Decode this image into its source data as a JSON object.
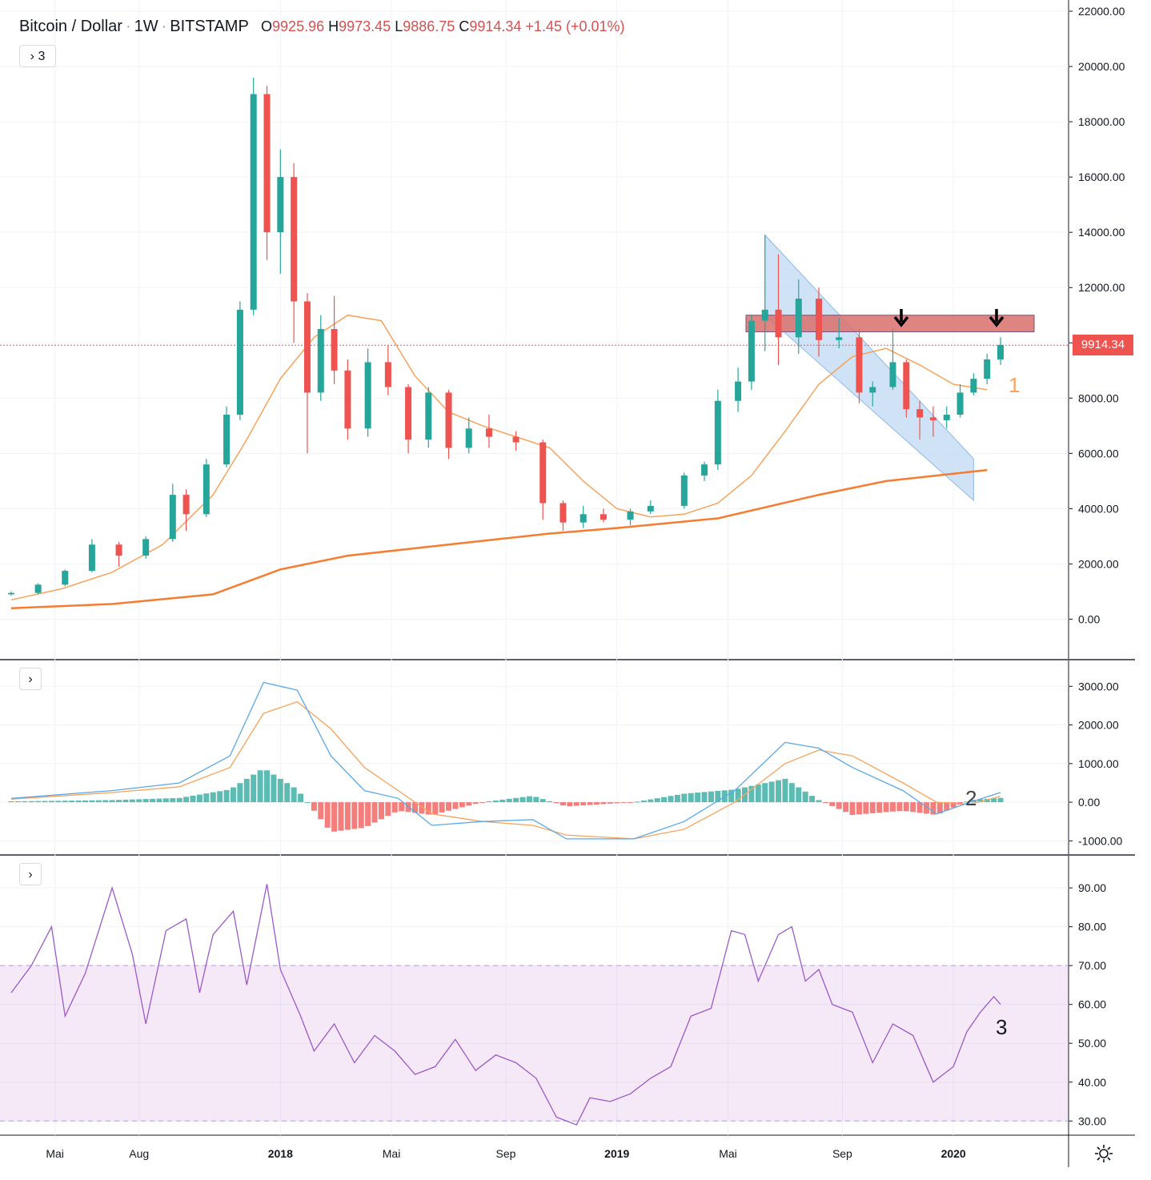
{
  "header": {
    "symbol": "Bitcoin / Dollar",
    "interval": "1W",
    "exchange": "BITSTAMP",
    "open_label": "O",
    "open": "9925.96",
    "high_label": "H",
    "high": "9973.45",
    "low_label": "L",
    "low": "9886.75",
    "close_label": "C",
    "close": "9914.34",
    "change": "+1.45 (+0.01%)"
  },
  "indicator_toggle_count": "3",
  "last_price_label": "9914.34",
  "colors": {
    "up": "#26a69a",
    "down": "#ef5350",
    "ma_short": "#f7a35c",
    "ma_long": "#f57c30",
    "macd": "#5aa9e6",
    "signal": "#f7a35c",
    "rsi": "#9b59c9",
    "channel": "#bcd7f2",
    "resistance": "#d9706b"
  },
  "annotations": {
    "ma_marker": "1",
    "macd_marker": "2",
    "rsi_marker": "3"
  },
  "chart_data": [
    {
      "type": "candlestick",
      "title": "Bitcoin / Dollar · 1W · BITSTAMP",
      "ylim": [
        -1000,
        22000
      ],
      "y_ticks": [
        "0.00",
        "2000.00",
        "4000.00",
        "6000.00",
        "8000.00",
        "10000.00",
        "12000.00",
        "14000.00",
        "16000.00",
        "18000.00",
        "20000.00",
        "22000.00"
      ],
      "x_ticks": [
        "Mai",
        "Aug",
        "2018",
        "Mai",
        "Sep",
        "2019",
        "Mai",
        "Sep",
        "2020"
      ],
      "series": [
        {
          "name": "MA short",
          "values": [
            [
              2017.2,
              700
            ],
            [
              2017.35,
              1100
            ],
            [
              2017.5,
              1700
            ],
            [
              2017.65,
              2700
            ],
            [
              2017.8,
              4500
            ],
            [
              2017.9,
              6500
            ],
            [
              2018.0,
              8700
            ],
            [
              2018.1,
              10200
            ],
            [
              2018.2,
              11000
            ],
            [
              2018.3,
              10800
            ],
            [
              2018.4,
              8800
            ],
            [
              2018.5,
              7500
            ],
            [
              2018.6,
              7000
            ],
            [
              2018.7,
              6600
            ],
            [
              2018.8,
              6200
            ],
            [
              2018.9,
              5000
            ],
            [
              2019.0,
              4000
            ],
            [
              2019.1,
              3700
            ],
            [
              2019.2,
              3800
            ],
            [
              2019.3,
              4200
            ],
            [
              2019.4,
              5200
            ],
            [
              2019.5,
              6800
            ],
            [
              2019.6,
              8500
            ],
            [
              2019.7,
              9500
            ],
            [
              2019.8,
              9800
            ],
            [
              2019.9,
              9200
            ],
            [
              2020.0,
              8500
            ],
            [
              2020.1,
              8300
            ]
          ]
        },
        {
          "name": "MA long",
          "values": [
            [
              2017.2,
              400
            ],
            [
              2017.5,
              550
            ],
            [
              2017.8,
              900
            ],
            [
              2018.0,
              1800
            ],
            [
              2018.2,
              2300
            ],
            [
              2018.5,
              2700
            ],
            [
              2018.8,
              3100
            ],
            [
              2019.0,
              3300
            ],
            [
              2019.3,
              3650
            ],
            [
              2019.6,
              4500
            ],
            [
              2019.8,
              5000
            ],
            [
              2020.1,
              5400
            ]
          ]
        }
      ],
      "ohlc": [
        [
          2017.2,
          900,
          1000,
          850,
          950
        ],
        [
          2017.28,
          950,
          1300,
          900,
          1250
        ],
        [
          2017.36,
          1250,
          1800,
          1200,
          1750
        ],
        [
          2017.44,
          1750,
          2900,
          1700,
          2700
        ],
        [
          2017.52,
          2700,
          2800,
          1900,
          2300
        ],
        [
          2017.6,
          2300,
          3000,
          2200,
          2900
        ],
        [
          2017.68,
          2900,
          4900,
          2800,
          4500
        ],
        [
          2017.72,
          4500,
          4700,
          3200,
          3800
        ],
        [
          2017.78,
          3800,
          5800,
          3700,
          5600
        ],
        [
          2017.84,
          5600,
          7700,
          5500,
          7400
        ],
        [
          2017.88,
          7400,
          11500,
          7200,
          11200
        ],
        [
          2017.92,
          11200,
          19600,
          11000,
          19000
        ],
        [
          2017.96,
          19000,
          19300,
          13000,
          14000
        ],
        [
          2018.0,
          14000,
          17000,
          12500,
          16000
        ],
        [
          2018.04,
          16000,
          16500,
          10000,
          11500
        ],
        [
          2018.08,
          11500,
          11800,
          6000,
          8200
        ],
        [
          2018.12,
          8200,
          11000,
          7900,
          10500
        ],
        [
          2018.16,
          10500,
          11700,
          8500,
          9000
        ],
        [
          2018.2,
          9000,
          9400,
          6500,
          6900
        ],
        [
          2018.26,
          6900,
          9800,
          6600,
          9300
        ],
        [
          2018.32,
          9300,
          9900,
          8100,
          8400
        ],
        [
          2018.38,
          8400,
          8500,
          6000,
          6500
        ],
        [
          2018.44,
          6500,
          8400,
          6200,
          8200
        ],
        [
          2018.5,
          8200,
          8300,
          5800,
          6200
        ],
        [
          2018.56,
          6200,
          7300,
          6000,
          6900
        ],
        [
          2018.62,
          6900,
          7400,
          6200,
          6600
        ],
        [
          2018.7,
          6600,
          6800,
          6100,
          6400
        ],
        [
          2018.78,
          6400,
          6500,
          3600,
          4200
        ],
        [
          2018.84,
          4200,
          4300,
          3200,
          3500
        ],
        [
          2018.9,
          3500,
          4100,
          3300,
          3800
        ],
        [
          2018.96,
          3800,
          4000,
          3500,
          3600
        ],
        [
          2019.04,
          3600,
          4000,
          3400,
          3900
        ],
        [
          2019.1,
          3900,
          4300,
          3800,
          4100
        ],
        [
          2019.2,
          4100,
          5300,
          4000,
          5200
        ],
        [
          2019.26,
          5200,
          5700,
          5000,
          5600
        ],
        [
          2019.3,
          5600,
          8300,
          5400,
          7900
        ],
        [
          2019.36,
          7900,
          9100,
          7500,
          8600
        ],
        [
          2019.4,
          8600,
          11000,
          8300,
          10800
        ],
        [
          2019.44,
          10800,
          13900,
          9700,
          11200
        ],
        [
          2019.48,
          11200,
          13200,
          9200,
          10200
        ],
        [
          2019.54,
          10200,
          12300,
          9600,
          11600
        ],
        [
          2019.6,
          11600,
          12000,
          9500,
          10100
        ],
        [
          2019.66,
          10100,
          10900,
          9800,
          10200
        ],
        [
          2019.72,
          10200,
          10500,
          7800,
          8200
        ],
        [
          2019.76,
          8200,
          8600,
          7700,
          8400
        ],
        [
          2019.82,
          8400,
          10500,
          8300,
          9300
        ],
        [
          2019.86,
          9300,
          9400,
          7300,
          7600
        ],
        [
          2019.9,
          7600,
          7900,
          6500,
          7300
        ],
        [
          2019.94,
          7300,
          7700,
          6600,
          7200
        ],
        [
          2019.98,
          7200,
          7700,
          6900,
          7400
        ],
        [
          2020.02,
          7400,
          8500,
          7300,
          8200
        ],
        [
          2020.06,
          8200,
          8900,
          8100,
          8700
        ],
        [
          2020.1,
          8700,
          9600,
          8500,
          9400
        ],
        [
          2020.14,
          9400,
          10200,
          9200,
          9926
        ]
      ],
      "descending_channel": {
        "upper": [
          [
            2019.44,
            13900
          ],
          [
            2020.06,
            5800
          ]
        ],
        "lower": [
          [
            2019.44,
            11000
          ],
          [
            2020.06,
            4300
          ]
        ]
      },
      "resistance_zone": [
        10400,
        11000
      ],
      "last_price": 9914.34
    },
    {
      "type": "macd",
      "ylim": [
        -1200,
        3400
      ],
      "y_ticks": [
        "-1000.00",
        "0.00",
        "1000.00",
        "2000.00",
        "3000.00"
      ],
      "series": [
        {
          "name": "MACD",
          "values": [
            [
              2017.2,
              100
            ],
            [
              2017.5,
              300
            ],
            [
              2017.7,
              500
            ],
            [
              2017.85,
              1200
            ],
            [
              2017.95,
              3100
            ],
            [
              2018.05,
              2900
            ],
            [
              2018.15,
              1200
            ],
            [
              2018.25,
              300
            ],
            [
              2018.35,
              100
            ],
            [
              2018.45,
              -600
            ],
            [
              2018.6,
              -500
            ],
            [
              2018.75,
              -450
            ],
            [
              2018.85,
              -950
            ],
            [
              2019.05,
              -950
            ],
            [
              2019.2,
              -500
            ],
            [
              2019.35,
              300
            ],
            [
              2019.5,
              1550
            ],
            [
              2019.6,
              1400
            ],
            [
              2019.7,
              900
            ],
            [
              2019.85,
              300
            ],
            [
              2019.95,
              -300
            ],
            [
              2020.05,
              0
            ],
            [
              2020.14,
              250
            ]
          ]
        },
        {
          "name": "Signal",
          "values": [
            [
              2017.2,
              80
            ],
            [
              2017.5,
              250
            ],
            [
              2017.7,
              400
            ],
            [
              2017.85,
              900
            ],
            [
              2017.95,
              2300
            ],
            [
              2018.05,
              2600
            ],
            [
              2018.15,
              1900
            ],
            [
              2018.25,
              900
            ],
            [
              2018.35,
              300
            ],
            [
              2018.45,
              -300
            ],
            [
              2018.6,
              -500
            ],
            [
              2018.75,
              -600
            ],
            [
              2018.85,
              -850
            ],
            [
              2019.05,
              -950
            ],
            [
              2019.2,
              -700
            ],
            [
              2019.35,
              0
            ],
            [
              2019.5,
              1000
            ],
            [
              2019.6,
              1350
            ],
            [
              2019.7,
              1200
            ],
            [
              2019.85,
              500
            ],
            [
              2019.95,
              0
            ],
            [
              2020.05,
              -50
            ],
            [
              2020.14,
              150
            ]
          ]
        }
      ]
    },
    {
      "type": "line",
      "ylim": [
        28,
        96
      ],
      "y_ticks": [
        "30.00",
        "40.00",
        "50.00",
        "60.00",
        "70.00",
        "80.00",
        "90.00"
      ],
      "band": [
        30,
        70
      ],
      "series": [
        {
          "name": "RSI",
          "values": [
            [
              2017.2,
              63
            ],
            [
              2017.26,
              70
            ],
            [
              2017.32,
              80
            ],
            [
              2017.36,
              57
            ],
            [
              2017.42,
              68
            ],
            [
              2017.5,
              90
            ],
            [
              2017.56,
              73
            ],
            [
              2017.6,
              55
            ],
            [
              2017.66,
              79
            ],
            [
              2017.72,
              82
            ],
            [
              2017.76,
              63
            ],
            [
              2017.8,
              78
            ],
            [
              2017.86,
              84
            ],
            [
              2017.9,
              65
            ],
            [
              2017.96,
              91
            ],
            [
              2018.0,
              69
            ],
            [
              2018.06,
              57
            ],
            [
              2018.1,
              48
            ],
            [
              2018.16,
              55
            ],
            [
              2018.22,
              45
            ],
            [
              2018.28,
              52
            ],
            [
              2018.34,
              48
            ],
            [
              2018.4,
              42
            ],
            [
              2018.46,
              44
            ],
            [
              2018.52,
              51
            ],
            [
              2018.58,
              43
            ],
            [
              2018.64,
              47
            ],
            [
              2018.7,
              45
            ],
            [
              2018.76,
              41
            ],
            [
              2018.82,
              31
            ],
            [
              2018.88,
              29
            ],
            [
              2018.92,
              36
            ],
            [
              2018.98,
              35
            ],
            [
              2019.04,
              37
            ],
            [
              2019.1,
              41
            ],
            [
              2019.16,
              44
            ],
            [
              2019.22,
              57
            ],
            [
              2019.28,
              59
            ],
            [
              2019.34,
              79
            ],
            [
              2019.38,
              78
            ],
            [
              2019.42,
              66
            ],
            [
              2019.48,
              78
            ],
            [
              2019.52,
              80
            ],
            [
              2019.56,
              66
            ],
            [
              2019.6,
              69
            ],
            [
              2019.64,
              60
            ],
            [
              2019.7,
              58
            ],
            [
              2019.76,
              45
            ],
            [
              2019.82,
              55
            ],
            [
              2019.88,
              52
            ],
            [
              2019.94,
              40
            ],
            [
              2020.0,
              44
            ],
            [
              2020.04,
              53
            ],
            [
              2020.08,
              58
            ],
            [
              2020.12,
              62
            ],
            [
              2020.14,
              60
            ]
          ]
        }
      ]
    }
  ]
}
